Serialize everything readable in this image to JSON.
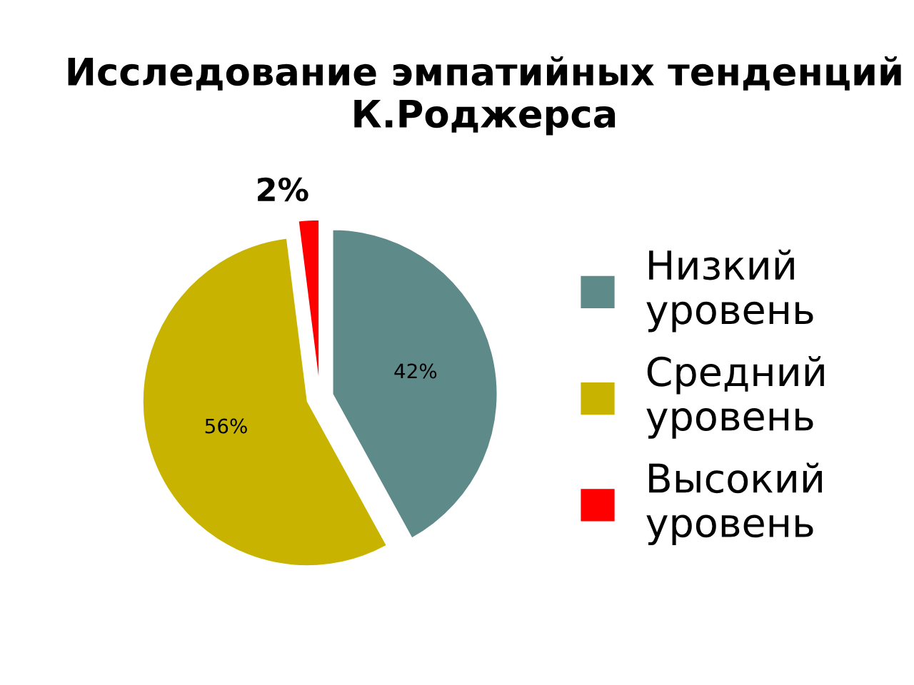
{
  "chart_data": {
    "type": "pie",
    "title": "Исследование эмпатийных тенденций К.Роджерса",
    "categories": [
      "Низкий уровень",
      "Средний уровень",
      "Высокий уровень"
    ],
    "values": [
      42,
      56,
      2
    ],
    "colors": [
      "#5f8a8a",
      "#c8b400",
      "#ff0000"
    ],
    "value_labels": [
      "42%",
      "56%",
      "2%"
    ],
    "legend": "right"
  }
}
